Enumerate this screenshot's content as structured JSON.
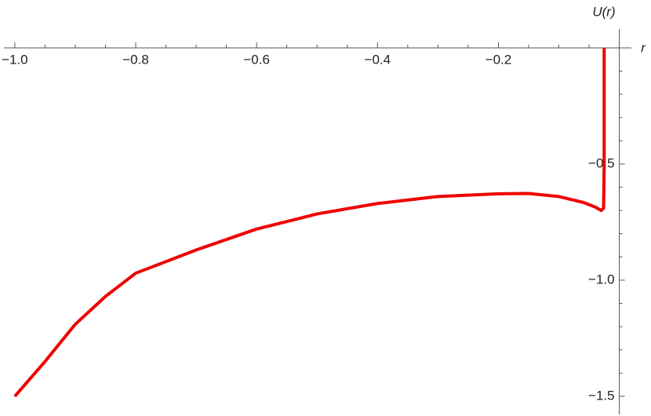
{
  "chart_data": {
    "type": "line",
    "x_label": "r",
    "y_label": "U(r)",
    "xlim": [
      -1.018,
      0.02
    ],
    "ylim": [
      -1.578,
      0.081
    ],
    "xticks": [
      {
        "value": -1.0,
        "label": "−1.0"
      },
      {
        "value": -0.8,
        "label": "−0.8"
      },
      {
        "value": -0.6,
        "label": "−0.6"
      },
      {
        "value": -0.4,
        "label": "−0.4"
      },
      {
        "value": -0.2,
        "label": "−0.2"
      }
    ],
    "xminorticks": [
      -0.95,
      -0.9,
      -0.85,
      -0.75,
      -0.7,
      -0.65,
      -0.55,
      -0.5,
      -0.45,
      -0.35,
      -0.3,
      -0.25,
      -0.15,
      -0.1,
      -0.05
    ],
    "yticks": [
      {
        "value": -0.5,
        "label": "−0.5"
      },
      {
        "value": -1.0,
        "label": "−1.0"
      },
      {
        "value": -1.5,
        "label": "−1.5"
      }
    ],
    "yminorticks": [
      -0.1,
      -0.2,
      -0.3,
      -0.4,
      -0.6,
      -0.7,
      -0.8,
      -0.9,
      -1.1,
      -1.2,
      -1.3,
      -1.4
    ],
    "series": [
      {
        "color": "#ee0000",
        "x": [
          -1.0,
          -0.95,
          -0.9,
          -0.85,
          -0.8,
          -0.7,
          -0.6,
          -0.5,
          -0.4,
          -0.3,
          -0.2,
          -0.15,
          -0.1,
          -0.06,
          -0.04,
          -0.03,
          -0.026,
          -0.025,
          -0.025
        ],
        "values": [
          -1.5,
          -1.35,
          -1.19,
          -1.07,
          -0.97,
          -0.87,
          -0.78,
          -0.715,
          -0.67,
          -0.64,
          -0.628,
          -0.627,
          -0.64,
          -0.665,
          -0.685,
          -0.7,
          -0.69,
          -0.5,
          0.0
        ]
      }
    ]
  }
}
